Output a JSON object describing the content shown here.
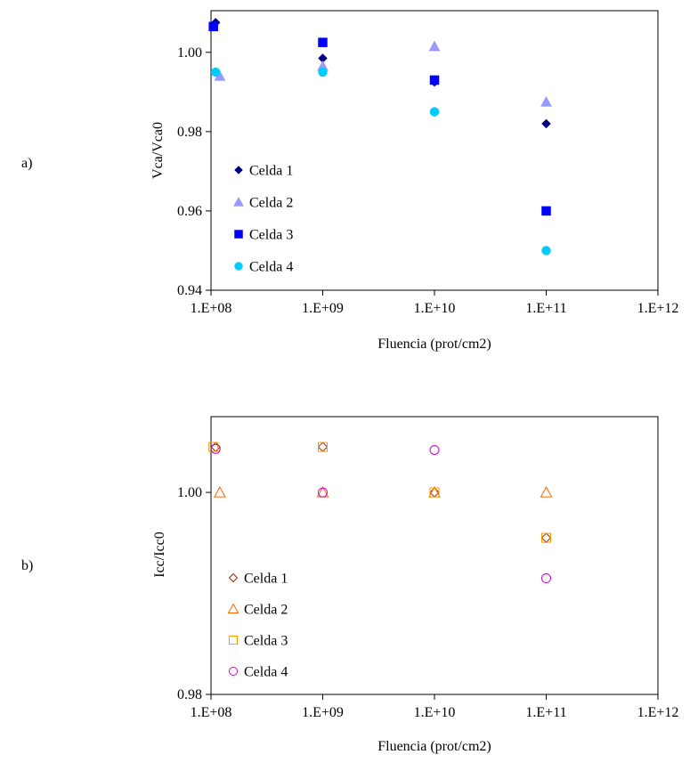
{
  "chart_data": [
    {
      "panel_label": "a)",
      "type": "scatter",
      "x_scale": "log",
      "xlim": [
        100000000.0,
        1000000000000.0
      ],
      "x_ticks": [
        100000000.0,
        1000000000.0,
        10000000000.0,
        100000000000.0,
        1000000000000.0
      ],
      "x_tick_labels": [
        "1.E+08",
        "1.E+09",
        "1.E+10",
        "1.E+11",
        "1.E+12"
      ],
      "ylim": [
        0.94,
        1.0105
      ],
      "y_ticks": [
        0.94,
        0.96,
        0.98,
        1.0
      ],
      "y_tick_labels": [
        "0.94",
        "0.96",
        "0.98",
        "1.00"
      ],
      "xlabel": "Fluencia (prot/cm2)",
      "ylabel": "Vca/Vca0",
      "grid": false,
      "legend_position": "bottom-left",
      "series": [
        {
          "name": "Celda 1",
          "marker": "diamond",
          "filled": true,
          "color": "#000080",
          "x": [
            110000000.0,
            1000000000.0,
            10000000000.0,
            100000000000.0
          ],
          "y": [
            1.0075,
            0.9985,
            0.9925,
            0.982
          ]
        },
        {
          "name": "Celda 2",
          "marker": "triangle",
          "filled": true,
          "color": "#9999ff",
          "x": [
            120000000.0,
            1000000000.0,
            10000000000.0,
            100000000000.0
          ],
          "y": [
            0.994,
            0.9965,
            1.0015,
            0.9875
          ]
        },
        {
          "name": "Celda 3",
          "marker": "square",
          "filled": true,
          "color": "#0000ff",
          "x": [
            105000000.0,
            1000000000.0,
            10000000000.0,
            100000000000.0
          ],
          "y": [
            1.0065,
            1.0025,
            0.993,
            0.96
          ]
        },
        {
          "name": "Celda 4",
          "marker": "circle",
          "filled": true,
          "color": "#00ccff",
          "x": [
            110000000.0,
            1000000000.0,
            10000000000.0,
            100000000000.0
          ],
          "y": [
            0.995,
            0.995,
            0.985,
            0.95
          ]
        }
      ]
    },
    {
      "panel_label": "b)",
      "type": "scatter",
      "x_scale": "log",
      "xlim": [
        100000000.0,
        1000000000000.0
      ],
      "x_ticks": [
        100000000.0,
        1000000000.0,
        10000000000.0,
        100000000000.0,
        1000000000000.0
      ],
      "x_tick_labels": [
        "1.E+08",
        "1.E+09",
        "1.E+10",
        "1.E+11",
        "1.E+12"
      ],
      "ylim": [
        0.98,
        1.0075
      ],
      "y_ticks": [
        0.98,
        1.0
      ],
      "y_tick_labels": [
        "0.98",
        "1.00"
      ],
      "xlabel": "Fluencia (prot/cm2)",
      "ylabel": "Icc/Icc0",
      "grid": false,
      "legend_position": "bottom-left",
      "series": [
        {
          "name": "Celda 1",
          "marker": "diamond",
          "filled": false,
          "color": "#993300",
          "x": [
            110000000.0,
            1000000000.0,
            10000000000.0,
            100000000000.0
          ],
          "y": [
            1.0045,
            1.0045,
            1.0,
            0.9955
          ]
        },
        {
          "name": "Celda 2",
          "marker": "triangle",
          "filled": false,
          "color": "#ff6600",
          "x": [
            120000000.0,
            1000000000.0,
            10000000000.0,
            100000000000.0
          ],
          "y": [
            1.0,
            1.0,
            1.0,
            1.0
          ]
        },
        {
          "name": "Celda 3",
          "marker": "square",
          "filled": false,
          "color": "#ff9900",
          "x": [
            105000000.0,
            1000000000.0,
            10000000000.0,
            100000000000.0
          ],
          "y": [
            1.0045,
            1.0045,
            1.0,
            0.9955
          ]
        },
        {
          "name": "Celda 4",
          "marker": "circle",
          "filled": false,
          "color": "#cc00cc",
          "x": [
            110000000.0,
            1000000000.0,
            10000000000.0,
            100000000000.0
          ],
          "y": [
            1.0043,
            1.0,
            1.0042,
            0.9915
          ]
        }
      ]
    }
  ]
}
